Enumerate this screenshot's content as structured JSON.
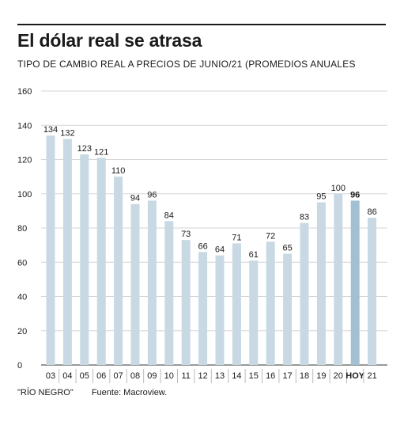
{
  "title": "El dólar real se atrasa",
  "subtitle": "TIPO DE CAMBIO REAL A PRECIOS DE JUNIO/21 (PROMEDIOS ANUALES",
  "footer": {
    "publisher": "\"RÍO NEGRO\"",
    "source": "Fuente: Macroview."
  },
  "colors": {
    "bar": "#c8d9e3",
    "bar_highlight": "#a3c0d3",
    "grid": "#d6d6d6",
    "text": "#1a1a1a"
  },
  "chart_data": {
    "type": "bar",
    "title": "El dólar real se atrasa",
    "subtitle": "TIPO DE CAMBIO REAL A PRECIOS DE JUNIO/21 (PROMEDIOS ANUALES",
    "categories": [
      "03",
      "04",
      "05",
      "06",
      "07",
      "08",
      "09",
      "10",
      "11",
      "12",
      "13",
      "14",
      "15",
      "16",
      "17",
      "18",
      "19",
      "20",
      "HOY",
      "21"
    ],
    "values": [
      134,
      132,
      123,
      121,
      110,
      94,
      96,
      84,
      73,
      66,
      64,
      71,
      61,
      72,
      65,
      83,
      95,
      100,
      96,
      86
    ],
    "highlight": "HOY",
    "ylim": [
      0,
      160
    ],
    "yticks": [
      0,
      20,
      40,
      60,
      80,
      100,
      120,
      140,
      160
    ],
    "grid": true,
    "xlabel": "",
    "ylabel": ""
  }
}
